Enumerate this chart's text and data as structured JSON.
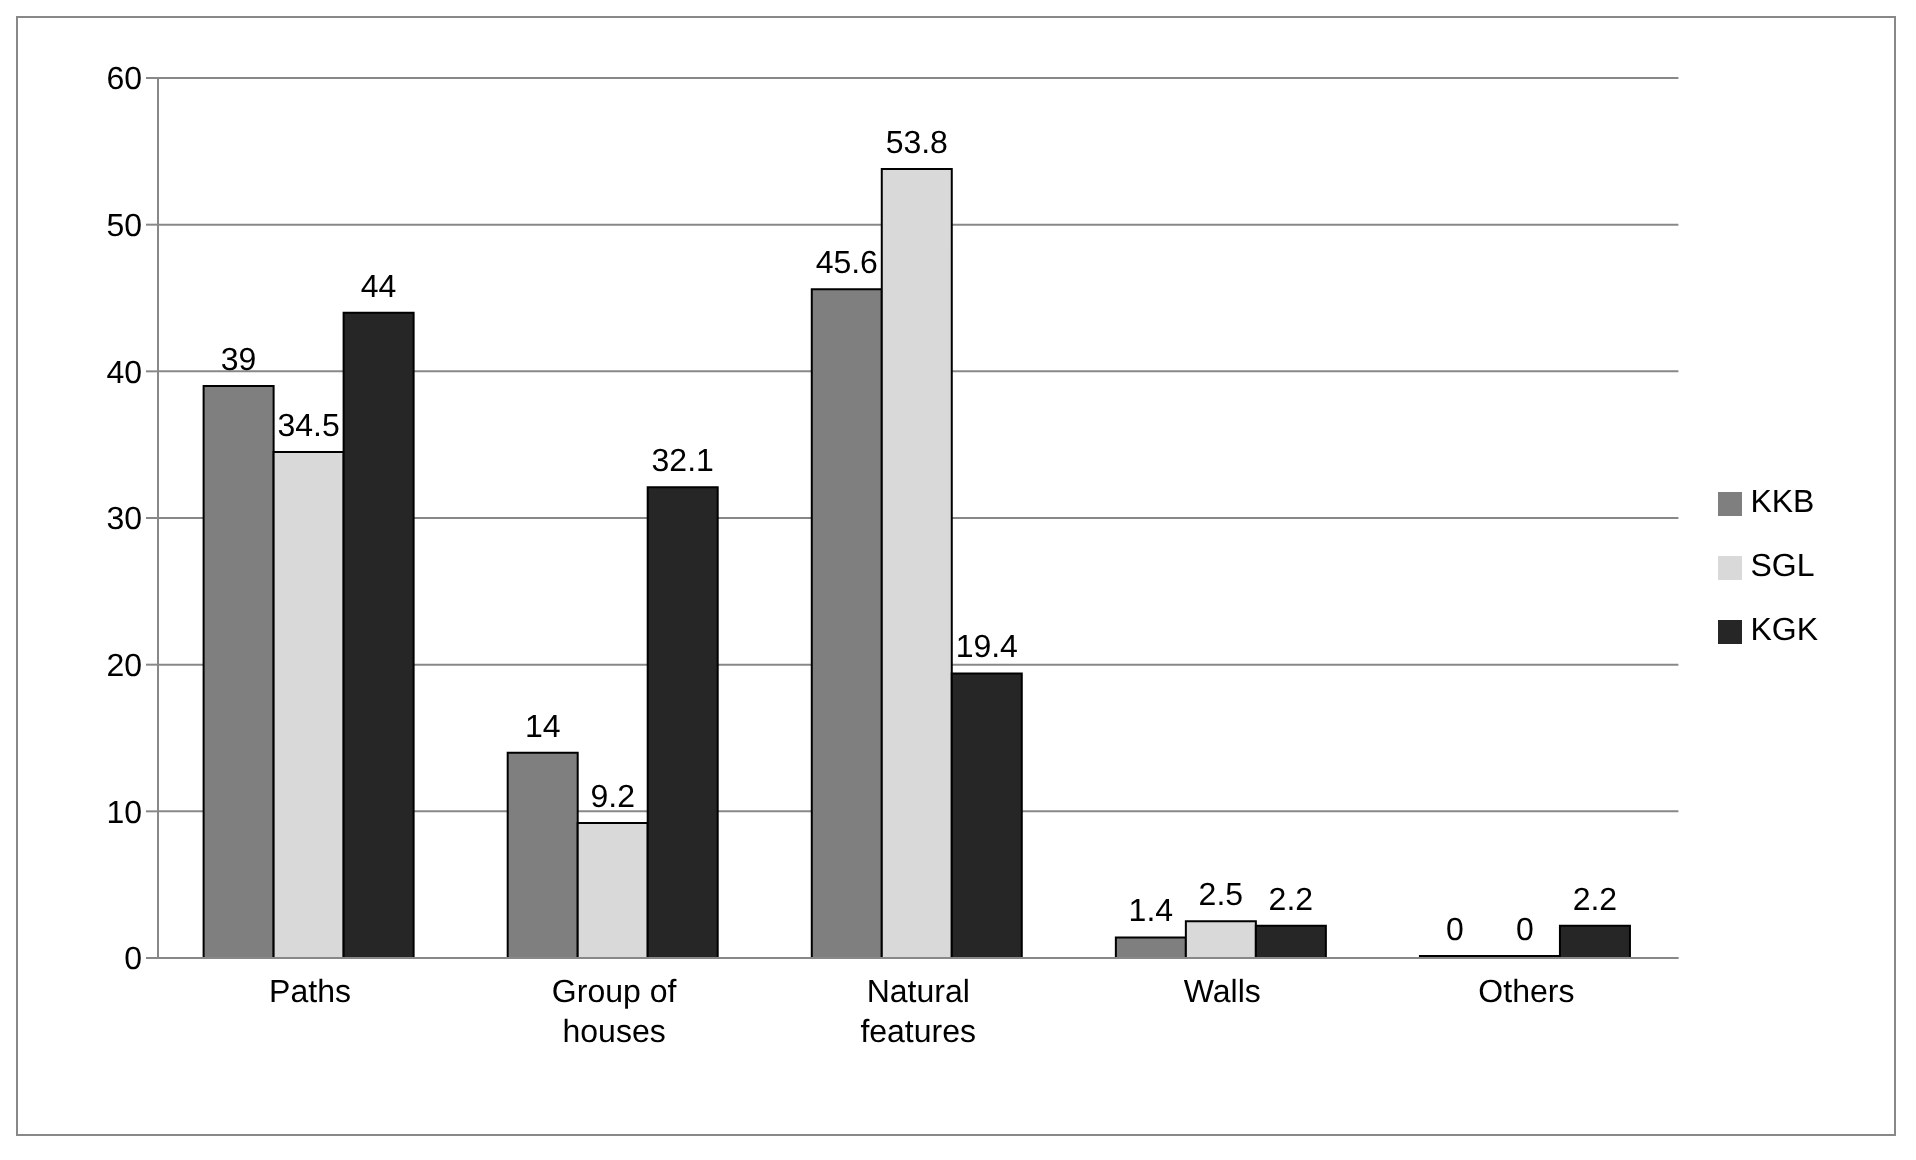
{
  "chart_data": {
    "type": "bar",
    "categories": [
      "Paths",
      "Group of houses",
      "Natural features",
      "Walls",
      "Others"
    ],
    "series": [
      {
        "name": "KKB",
        "color": "#7f7f7f",
        "values": [
          39,
          14,
          45.6,
          1.4,
          0
        ]
      },
      {
        "name": "SGL",
        "color": "#d9d9d9",
        "values": [
          34.5,
          9.2,
          53.8,
          2.5,
          0
        ]
      },
      {
        "name": "KGK",
        "color": "#262626",
        "values": [
          44,
          32.1,
          19.4,
          2.2,
          2.2
        ]
      }
    ],
    "ylim": [
      0,
      60
    ],
    "yticks": [
      0,
      10,
      20,
      30,
      40,
      50,
      60
    ],
    "grid": "y",
    "legend": "right",
    "data_labels": true
  }
}
